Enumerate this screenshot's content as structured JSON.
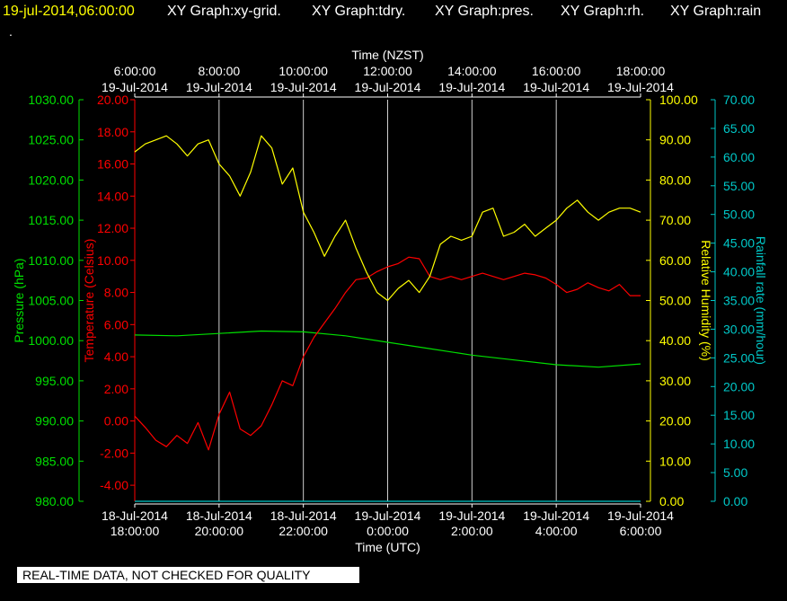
{
  "header": {
    "datetime": "19-jul-2014,06:00:00",
    "graphs": [
      "XY Graph:xy-grid.",
      "XY Graph:tdry.",
      "XY Graph:pres.",
      "XY Graph:rh.",
      "XY Graph:rain"
    ],
    "dot": "."
  },
  "footer_note": "REAL-TIME DATA, NOT CHECKED FOR QUALITY",
  "colors": {
    "background": "#000000",
    "header_datetime": "#ffff00",
    "header_text": "#ffffff",
    "pressure": "#00e000",
    "temperature": "#ff0000",
    "humidity": "#ffff00",
    "rain": "#00c8c8",
    "grid": "#d0d0d0",
    "axis_text": "#ffffff"
  },
  "chart_data": {
    "type": "line",
    "x_top": {
      "title": "Time (NZST)",
      "ticks": [
        [
          "6:00:00",
          "19-Jul-2014"
        ],
        [
          "8:00:00",
          "19-Jul-2014"
        ],
        [
          "10:00:00",
          "19-Jul-2014"
        ],
        [
          "12:00:00",
          "19-Jul-2014"
        ],
        [
          "14:00:00",
          "19-Jul-2014"
        ],
        [
          "16:00:00",
          "19-Jul-2014"
        ],
        [
          "18:00:00",
          "19-Jul-2014"
        ]
      ]
    },
    "x_bottom": {
      "title": "Time (UTC)",
      "ticks": [
        [
          "18-Jul-2014",
          "18:00:00"
        ],
        [
          "18-Jul-2014",
          "20:00:00"
        ],
        [
          "18-Jul-2014",
          "22:00:00"
        ],
        [
          "19-Jul-2014",
          "0:00:00"
        ],
        [
          "19-Jul-2014",
          "2:00:00"
        ],
        [
          "19-Jul-2014",
          "4:00:00"
        ],
        [
          "19-Jul-2014",
          "6:00:00"
        ]
      ]
    },
    "x_range_hours_utc": [
      0,
      12
    ],
    "y_axes": [
      {
        "name": "Pressure (hPa)",
        "color": "#00e000",
        "range": [
          980,
          1030
        ],
        "ticks": [
          "980.00",
          "985.00",
          "990.00",
          "995.00",
          "1000.00",
          "1005.00",
          "1010.00",
          "1015.00",
          "1020.00",
          "1025.00",
          "1030.00"
        ]
      },
      {
        "name": "Temperature (Celsius)",
        "color": "#ff0000",
        "range": [
          -5,
          20
        ],
        "ticks": [
          "-4.00",
          "-2.00",
          "0.00",
          "2.00",
          "4.00",
          "6.00",
          "8.00",
          "10.00",
          "12.00",
          "14.00",
          "16.00",
          "18.00",
          "20.00"
        ]
      },
      {
        "name": "Relative Humidity (%)",
        "color": "#ffff00",
        "range": [
          0,
          100
        ],
        "ticks": [
          "0.00",
          "10.00",
          "20.00",
          "30.00",
          "40.00",
          "50.00",
          "60.00",
          "70.00",
          "80.00",
          "90.00",
          "100.00"
        ]
      },
      {
        "name": "Rainfall rate (mm/hour)",
        "color": "#00c8c8",
        "range": [
          0,
          70
        ],
        "ticks": [
          "0.00",
          "5.00",
          "10.00",
          "15.00",
          "20.00",
          "25.00",
          "30.00",
          "35.00",
          "40.00",
          "45.00",
          "50.00",
          "55.00",
          "60.00",
          "65.00",
          "70.00"
        ]
      }
    ],
    "series": [
      {
        "name": "pres",
        "color": "#00e000",
        "axis": 0,
        "x": [
          0,
          1,
          2,
          3,
          4,
          5,
          6,
          7,
          8,
          9,
          10,
          11,
          12
        ],
        "y": [
          1000.7,
          1000.6,
          1000.9,
          1001.2,
          1001.1,
          1000.6,
          999.8,
          999.0,
          998.2,
          997.6,
          997.0,
          996.7,
          997.1
        ]
      },
      {
        "name": "tdry",
        "color": "#ff0000",
        "axis": 1,
        "x": [
          0,
          0.25,
          0.5,
          0.75,
          1.0,
          1.25,
          1.5,
          1.75,
          2.0,
          2.25,
          2.5,
          2.75,
          3.0,
          3.25,
          3.5,
          3.75,
          4.0,
          4.25,
          4.5,
          4.75,
          5.0,
          5.25,
          5.5,
          5.75,
          6.0,
          6.25,
          6.5,
          6.75,
          7.0,
          7.25,
          7.5,
          7.75,
          8.0,
          8.25,
          8.5,
          8.75,
          9.0,
          9.25,
          9.5,
          9.75,
          10.0,
          10.25,
          10.5,
          10.75,
          11.0,
          11.25,
          11.5,
          11.75,
          12.0
        ],
        "y": [
          0.3,
          -0.4,
          -1.2,
          -1.6,
          -0.9,
          -1.4,
          -0.1,
          -1.8,
          0.4,
          1.8,
          -0.5,
          -0.9,
          -0.3,
          1.0,
          2.5,
          2.2,
          4.0,
          5.2,
          6.1,
          7.0,
          8.0,
          8.8,
          8.9,
          9.3,
          9.6,
          9.8,
          10.2,
          10.1,
          9.0,
          8.8,
          9.0,
          8.8,
          9.0,
          9.2,
          9.0,
          8.8,
          9.0,
          9.2,
          9.1,
          8.9,
          8.5,
          8.0,
          8.2,
          8.6,
          8.3,
          8.1,
          8.5,
          7.8,
          7.8
        ]
      },
      {
        "name": "rh",
        "color": "#ffff00",
        "axis": 2,
        "x": [
          0,
          0.25,
          0.5,
          0.75,
          1.0,
          1.25,
          1.5,
          1.75,
          2.0,
          2.25,
          2.5,
          2.75,
          3.0,
          3.25,
          3.5,
          3.75,
          4.0,
          4.25,
          4.5,
          4.75,
          5.0,
          5.25,
          5.5,
          5.75,
          6.0,
          6.25,
          6.5,
          6.75,
          7.0,
          7.25,
          7.5,
          7.75,
          8.0,
          8.25,
          8.5,
          8.75,
          9.0,
          9.25,
          9.5,
          9.75,
          10.0,
          10.25,
          10.5,
          10.75,
          11.0,
          11.25,
          11.5,
          11.75,
          12.0
        ],
        "y": [
          87,
          89,
          90,
          91,
          89,
          86,
          89,
          90,
          84,
          81,
          76,
          82,
          91,
          88,
          79,
          83,
          72,
          67,
          61,
          66,
          70,
          63,
          57,
          52,
          50,
          53,
          55,
          52,
          56,
          64,
          66,
          65,
          66,
          72,
          73,
          66,
          67,
          69,
          66,
          68,
          70,
          73,
          75,
          72,
          70,
          72,
          73,
          73,
          72
        ]
      },
      {
        "name": "rain",
        "color": "#00c8c8",
        "axis": 3,
        "x": [
          0,
          12
        ],
        "y": [
          0,
          0
        ]
      }
    ]
  }
}
